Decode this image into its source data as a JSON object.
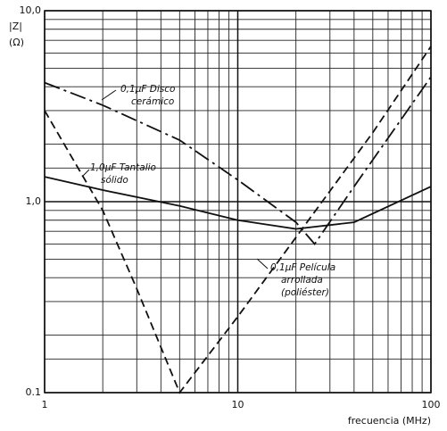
{
  "chart_data": {
    "type": "line",
    "x_label": "frecuencia (MHz)",
    "y_label": [
      "|Z|",
      "(Ω)"
    ],
    "log_x": true,
    "log_y": true,
    "grid": true,
    "xlim": [
      1,
      100
    ],
    "ylim": [
      0.1,
      10
    ],
    "xticks": [
      1,
      10,
      100
    ],
    "yticks": [
      0.1,
      {
        "value": 1,
        "label": "1,0"
      },
      {
        "value": 10,
        "label": "10,0"
      }
    ],
    "series": [
      {
        "style": "dashdot",
        "color": "#111",
        "x": [
          1,
          2,
          5,
          10,
          20,
          25,
          40,
          100
        ],
        "values": [
          4.2,
          3.2,
          2.1,
          1.3,
          0.78,
          0.6,
          1.2,
          4.5
        ]
      },
      {
        "style": "solid",
        "color": "#111",
        "x": [
          1,
          2,
          5,
          10,
          20,
          40,
          100
        ],
        "values": [
          1.35,
          1.15,
          0.95,
          0.8,
          0.72,
          0.78,
          1.2
        ]
      },
      {
        "style": "dashed",
        "color": "#111",
        "x": [
          1,
          2,
          3,
          5,
          10,
          20,
          50,
          100
        ],
        "values": [
          3.0,
          0.9,
          0.35,
          0.1,
          0.25,
          0.65,
          2.3,
          6.5
        ]
      }
    ],
    "annotations": [
      {
        "lines": [
          "0,1µF Disco",
          "cerámico"
        ]
      },
      {
        "lines": [
          "1,0µF Tantalio",
          "sólido"
        ]
      },
      {
        "lines": [
          "0,1µF Película",
          "arrollada",
          "(poliéster)"
        ]
      }
    ]
  }
}
